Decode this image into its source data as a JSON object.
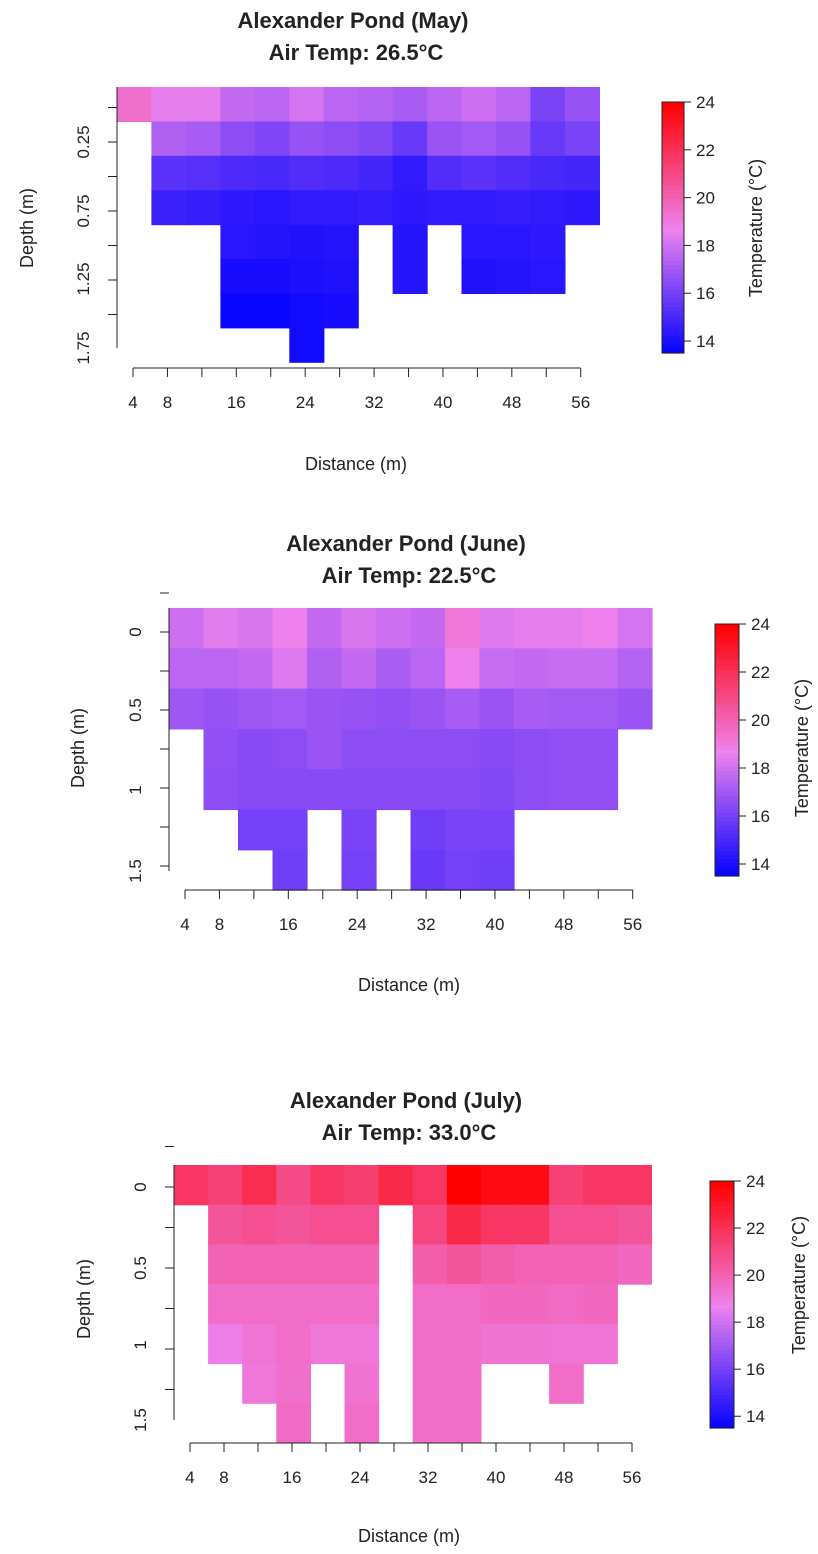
{
  "chart_data": [
    {
      "type": "heatmap",
      "title": "Alexander Pond (May)",
      "subtitle": "Air Temp: 26.5°C",
      "xlabel": "Distance (m)",
      "ylabel": "Depth (m)",
      "colorbar_label": "Temperature (°C)",
      "colorbar_ticks": [
        "14",
        "16",
        "18",
        "20",
        "22",
        "24"
      ],
      "xticks": [
        "4",
        "8",
        "16",
        "24",
        "32",
        "40",
        "48",
        "56"
      ],
      "yticks": [
        "0.25",
        "0.75",
        "1.25",
        "1.75"
      ],
      "x": [
        4,
        8,
        12,
        16,
        20,
        24,
        28,
        32,
        36,
        40,
        44,
        48,
        52,
        56
      ],
      "y": [
        0,
        0.25,
        0.5,
        0.75,
        1.0,
        1.25,
        1.5,
        1.75
      ],
      "z": [
        [
          19.5,
          18.6,
          18.6,
          17.8,
          17.6,
          18.2,
          17.6,
          17.5,
          17.2,
          17.6,
          18.0,
          17.6,
          16.2,
          16.8
        ],
        [
          null,
          17.4,
          17.2,
          16.6,
          16.3,
          16.8,
          16.6,
          16.4,
          15.8,
          16.9,
          17.1,
          16.8,
          15.8,
          16.2
        ],
        [
          null,
          15.5,
          15.4,
          15.2,
          15.1,
          15.3,
          15.2,
          15.0,
          14.6,
          15.3,
          15.5,
          15.3,
          15.1,
          15.0
        ],
        [
          null,
          14.8,
          14.7,
          14.5,
          14.4,
          14.6,
          14.6,
          14.7,
          14.5,
          14.6,
          14.6,
          14.7,
          14.6,
          14.5
        ],
        [
          null,
          null,
          null,
          14.4,
          14.3,
          14.2,
          14.3,
          null,
          14.3,
          null,
          14.4,
          14.4,
          14.5,
          null
        ],
        [
          null,
          null,
          null,
          14.0,
          14.0,
          14.1,
          14.2,
          null,
          14.3,
          null,
          14.2,
          14.3,
          14.4,
          null
        ],
        [
          null,
          null,
          null,
          13.7,
          13.7,
          13.9,
          14.0,
          null,
          null,
          null,
          null,
          null,
          null,
          null
        ],
        [
          null,
          null,
          null,
          null,
          null,
          13.9,
          null,
          null,
          null,
          null,
          null,
          null,
          null,
          null
        ]
      ],
      "zlim": [
        13.5,
        24
      ]
    },
    {
      "type": "heatmap",
      "title": "Alexander Pond (June)",
      "subtitle": "Air Temp: 22.5°C",
      "xlabel": "Distance (m)",
      "ylabel": "Depth (m)",
      "colorbar_label": "Temperature (°C)",
      "colorbar_ticks": [
        "14",
        "16",
        "18",
        "20",
        "22",
        "24"
      ],
      "xticks": [
        "4",
        "8",
        "16",
        "24",
        "32",
        "40",
        "48",
        "56"
      ],
      "yticks": [
        "0",
        "0.5",
        "1",
        "1.5"
      ],
      "x": [
        4,
        8,
        12,
        16,
        20,
        24,
        28,
        32,
        36,
        40,
        44,
        48,
        52,
        56
      ],
      "y": [
        0,
        0.25,
        0.5,
        0.75,
        1.0,
        1.25,
        1.5
      ],
      "z": [
        [
          18.0,
          18.5,
          18.3,
          18.8,
          17.8,
          18.3,
          18.0,
          17.8,
          19.2,
          18.4,
          18.6,
          18.6,
          18.8,
          18.2
        ],
        [
          17.6,
          17.6,
          17.8,
          18.4,
          17.4,
          17.8,
          17.3,
          17.6,
          18.8,
          17.9,
          17.8,
          17.9,
          17.9,
          17.5
        ],
        [
          17.0,
          16.8,
          17.0,
          17.1,
          16.9,
          16.8,
          16.7,
          16.9,
          17.2,
          16.9,
          17.2,
          17.1,
          17.1,
          16.9
        ],
        [
          null,
          16.7,
          16.5,
          16.6,
          16.9,
          16.6,
          16.6,
          16.6,
          16.6,
          16.5,
          16.6,
          16.7,
          16.7,
          null
        ],
        [
          null,
          16.6,
          16.5,
          16.5,
          16.5,
          16.5,
          16.5,
          16.5,
          16.5,
          16.4,
          16.6,
          16.7,
          16.7,
          null
        ],
        [
          null,
          null,
          16.1,
          16.1,
          null,
          16.2,
          null,
          16.0,
          16.2,
          16.2,
          null,
          null,
          null,
          null
        ],
        [
          null,
          null,
          null,
          16.0,
          null,
          16.1,
          null,
          15.8,
          16.1,
          16.0,
          null,
          null,
          null,
          null
        ]
      ],
      "zlim": [
        13.5,
        24
      ]
    },
    {
      "type": "heatmap",
      "title": "Alexander Pond (July)",
      "subtitle": "Air Temp: 33.0°C",
      "xlabel": "Distance (m)",
      "ylabel": "Depth (m)",
      "colorbar_label": "Temperature (°C)",
      "colorbar_ticks": [
        "14",
        "16",
        "18",
        "20",
        "22",
        "24"
      ],
      "xticks": [
        "4",
        "8",
        "16",
        "24",
        "32",
        "40",
        "48",
        "56"
      ],
      "yticks": [
        "0",
        "0.5",
        "1",
        "1.5"
      ],
      "x": [
        4,
        8,
        12,
        16,
        20,
        24,
        28,
        32,
        36,
        40,
        44,
        48,
        52,
        56
      ],
      "y": [
        0,
        0.25,
        0.5,
        0.75,
        1.0,
        1.25,
        1.5
      ],
      "z": [
        [
          21.8,
          21.4,
          22.2,
          21.0,
          21.8,
          21.5,
          22.4,
          21.8,
          24.0,
          23.6,
          23.6,
          21.4,
          21.8,
          21.8
        ],
        [
          null,
          20.6,
          20.8,
          20.6,
          20.8,
          20.8,
          null,
          21.2,
          22.4,
          21.8,
          21.8,
          20.8,
          20.8,
          20.6
        ],
        [
          null,
          20.0,
          20.0,
          20.0,
          20.0,
          20.0,
          null,
          20.2,
          20.6,
          20.2,
          20.0,
          20.0,
          20.0,
          19.8
        ],
        [
          null,
          19.6,
          19.6,
          19.6,
          19.6,
          19.6,
          null,
          19.6,
          19.6,
          19.8,
          19.8,
          19.7,
          19.8,
          null
        ],
        [
          null,
          18.9,
          19.3,
          19.6,
          19.2,
          19.2,
          null,
          19.6,
          19.6,
          19.4,
          19.4,
          19.3,
          19.3,
          null
        ],
        [
          null,
          null,
          19.2,
          19.5,
          null,
          19.4,
          null,
          19.6,
          19.6,
          null,
          null,
          19.6,
          null,
          null
        ],
        [
          null,
          null,
          null,
          19.7,
          null,
          19.6,
          null,
          19.6,
          19.6,
          null,
          null,
          null,
          null,
          null
        ]
      ],
      "zlim": [
        13.5,
        24
      ]
    }
  ]
}
